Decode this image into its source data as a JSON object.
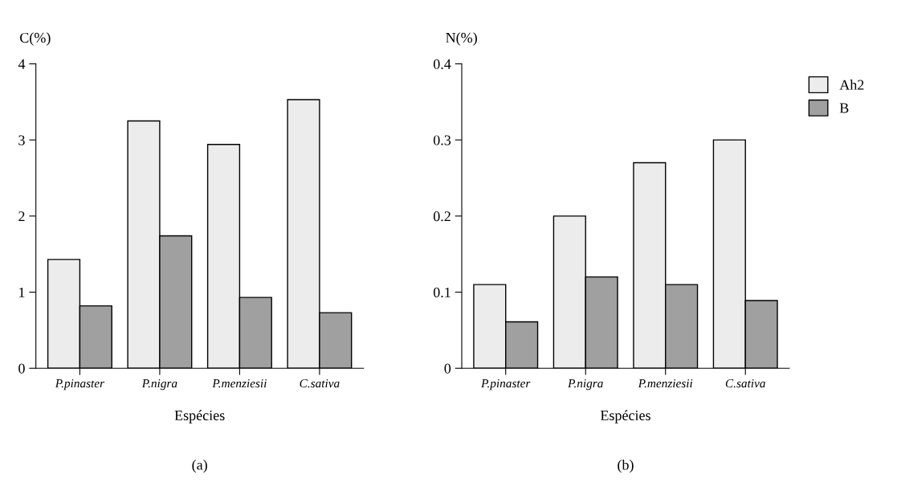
{
  "chart_data": [
    {
      "type": "bar",
      "ylabel": "C(%)",
      "xlabel": "Espécies",
      "annotations": [
        "(a)"
      ],
      "categories": [
        "P.pinaster",
        "P.nigra",
        "P.menziesii",
        "C.sativa"
      ],
      "series": [
        {
          "color": "#ececec",
          "values": [
            1.43,
            3.25,
            2.94,
            3.53
          ]
        },
        {
          "color": "#a0a0a0",
          "values": [
            0.82,
            1.74,
            0.93,
            0.73
          ]
        }
      ],
      "ylim": [
        0,
        4
      ],
      "yticks": [
        0,
        1,
        2,
        3,
        4
      ],
      "grid": false,
      "legend": false
    },
    {
      "type": "bar",
      "ylabel": "N(%)",
      "xlabel": "Espécies",
      "annotations": [
        "(b)"
      ],
      "categories": [
        "P.pinaster",
        "P.nigra",
        "P.menziesii",
        "C.sativa"
      ],
      "series": [
        {
          "name": "Ah2",
          "color": "#ececec",
          "values": [
            0.11,
            0.2,
            0.27,
            0.3
          ]
        },
        {
          "name": "B",
          "color": "#a0a0a0",
          "values": [
            0.061,
            0.12,
            0.11,
            0.089
          ]
        }
      ],
      "ylim": [
        0,
        0.4
      ],
      "yticks": [
        0,
        0.1,
        0.2,
        0.3,
        0.4
      ],
      "grid": false,
      "legend": "top right"
    }
  ]
}
